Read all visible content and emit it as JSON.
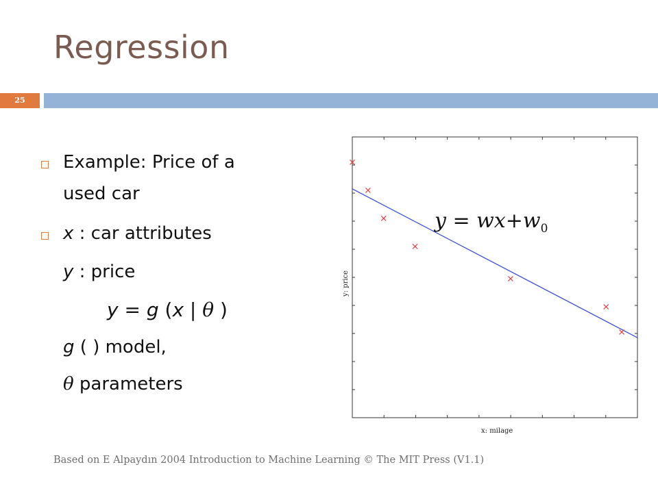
{
  "slide": {
    "title": "Regression",
    "number": "25",
    "footer": "Based on E Alpaydın 2004 Introduction to Machine Learning © The MIT Press (V1.1)",
    "accent_color": "#e07a3e",
    "bar_color": "#95b3d7",
    "title_color": "#7a5b52"
  },
  "bullets": {
    "b1_line1": "Example: Price of a",
    "b1_line2": "used car",
    "b2_var": "x",
    "b2_rest": " : car attributes",
    "y_var": "y",
    "y_rest": " : price",
    "eq_y": "y",
    "eq_eq": " = ",
    "eq_g": "g",
    "eq_open": " (",
    "eq_x": "x",
    "eq_bar": " | ",
    "eq_theta": "θ",
    "eq_close": " )",
    "g_var": "g",
    "g_rest": " ( ) model,",
    "theta_var": "θ",
    "theta_rest": " parameters"
  },
  "chart_data": {
    "type": "scatter",
    "xlabel": "x: milage",
    "ylabel": "y: price",
    "equation": "y = wx+w",
    "equation_sub": "0",
    "xlim": [
      0,
      1
    ],
    "ylim": [
      0,
      1
    ],
    "points": [
      {
        "x": 0.0,
        "y": 0.91
      },
      {
        "x": 0.055,
        "y": 0.81
      },
      {
        "x": 0.11,
        "y": 0.71
      },
      {
        "x": 0.22,
        "y": 0.61
      },
      {
        "x": 0.555,
        "y": 0.495
      },
      {
        "x": 0.89,
        "y": 0.395
      },
      {
        "x": 0.945,
        "y": 0.305
      }
    ],
    "fit_line": {
      "x": [
        0.0,
        1.0
      ],
      "y": [
        0.815,
        0.285
      ]
    },
    "point_color": "#e04040",
    "line_color": "#3a4fd8"
  }
}
